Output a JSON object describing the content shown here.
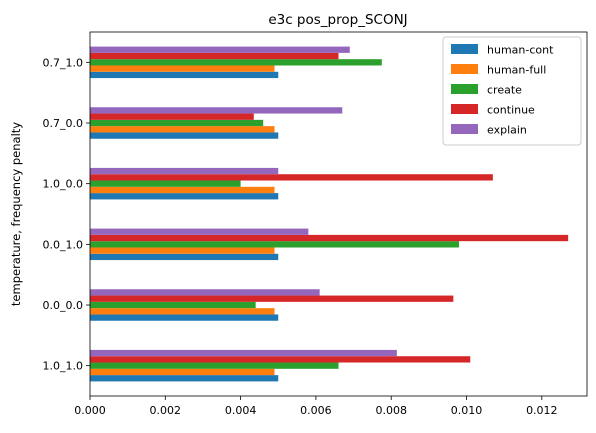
{
  "chart_data": {
    "type": "bar",
    "orientation": "horizontal",
    "title": "e3c pos_prop_SCONJ",
    "xlabel": "",
    "ylabel": "temperature, frequency penalty",
    "xlim": [
      0,
      0.0132
    ],
    "xticks": [
      0.0,
      0.002,
      0.004,
      0.006,
      0.008,
      0.01,
      0.012
    ],
    "xtick_labels": [
      "0.000",
      "0.002",
      "0.004",
      "0.006",
      "0.008",
      "0.010",
      "0.012"
    ],
    "grid": false,
    "legend_position": "top-right",
    "categories": [
      "1.0_1.0",
      "0.0_0.0",
      "0.0_1.0",
      "1.0_0.0",
      "0.7_0.0",
      "0.7_1.0"
    ],
    "series": [
      {
        "name": "human-cont",
        "color": "#1f77b4",
        "values": [
          0.005,
          0.005,
          0.005,
          0.005,
          0.005,
          0.005
        ]
      },
      {
        "name": "human-full",
        "color": "#ff7f0e",
        "values": [
          0.0049,
          0.0049,
          0.0049,
          0.0049,
          0.0049,
          0.0049
        ]
      },
      {
        "name": "create",
        "color": "#2ca02c",
        "values": [
          0.0066,
          0.0044,
          0.0098,
          0.004,
          0.0046,
          0.00775
        ]
      },
      {
        "name": "continue",
        "color": "#d62728",
        "values": [
          0.0101,
          0.00965,
          0.0127,
          0.0107,
          0.00435,
          0.0066
        ]
      },
      {
        "name": "explain",
        "color": "#9467bd",
        "values": [
          0.00815,
          0.0061,
          0.0058,
          0.005,
          0.0067,
          0.0069
        ]
      }
    ]
  }
}
